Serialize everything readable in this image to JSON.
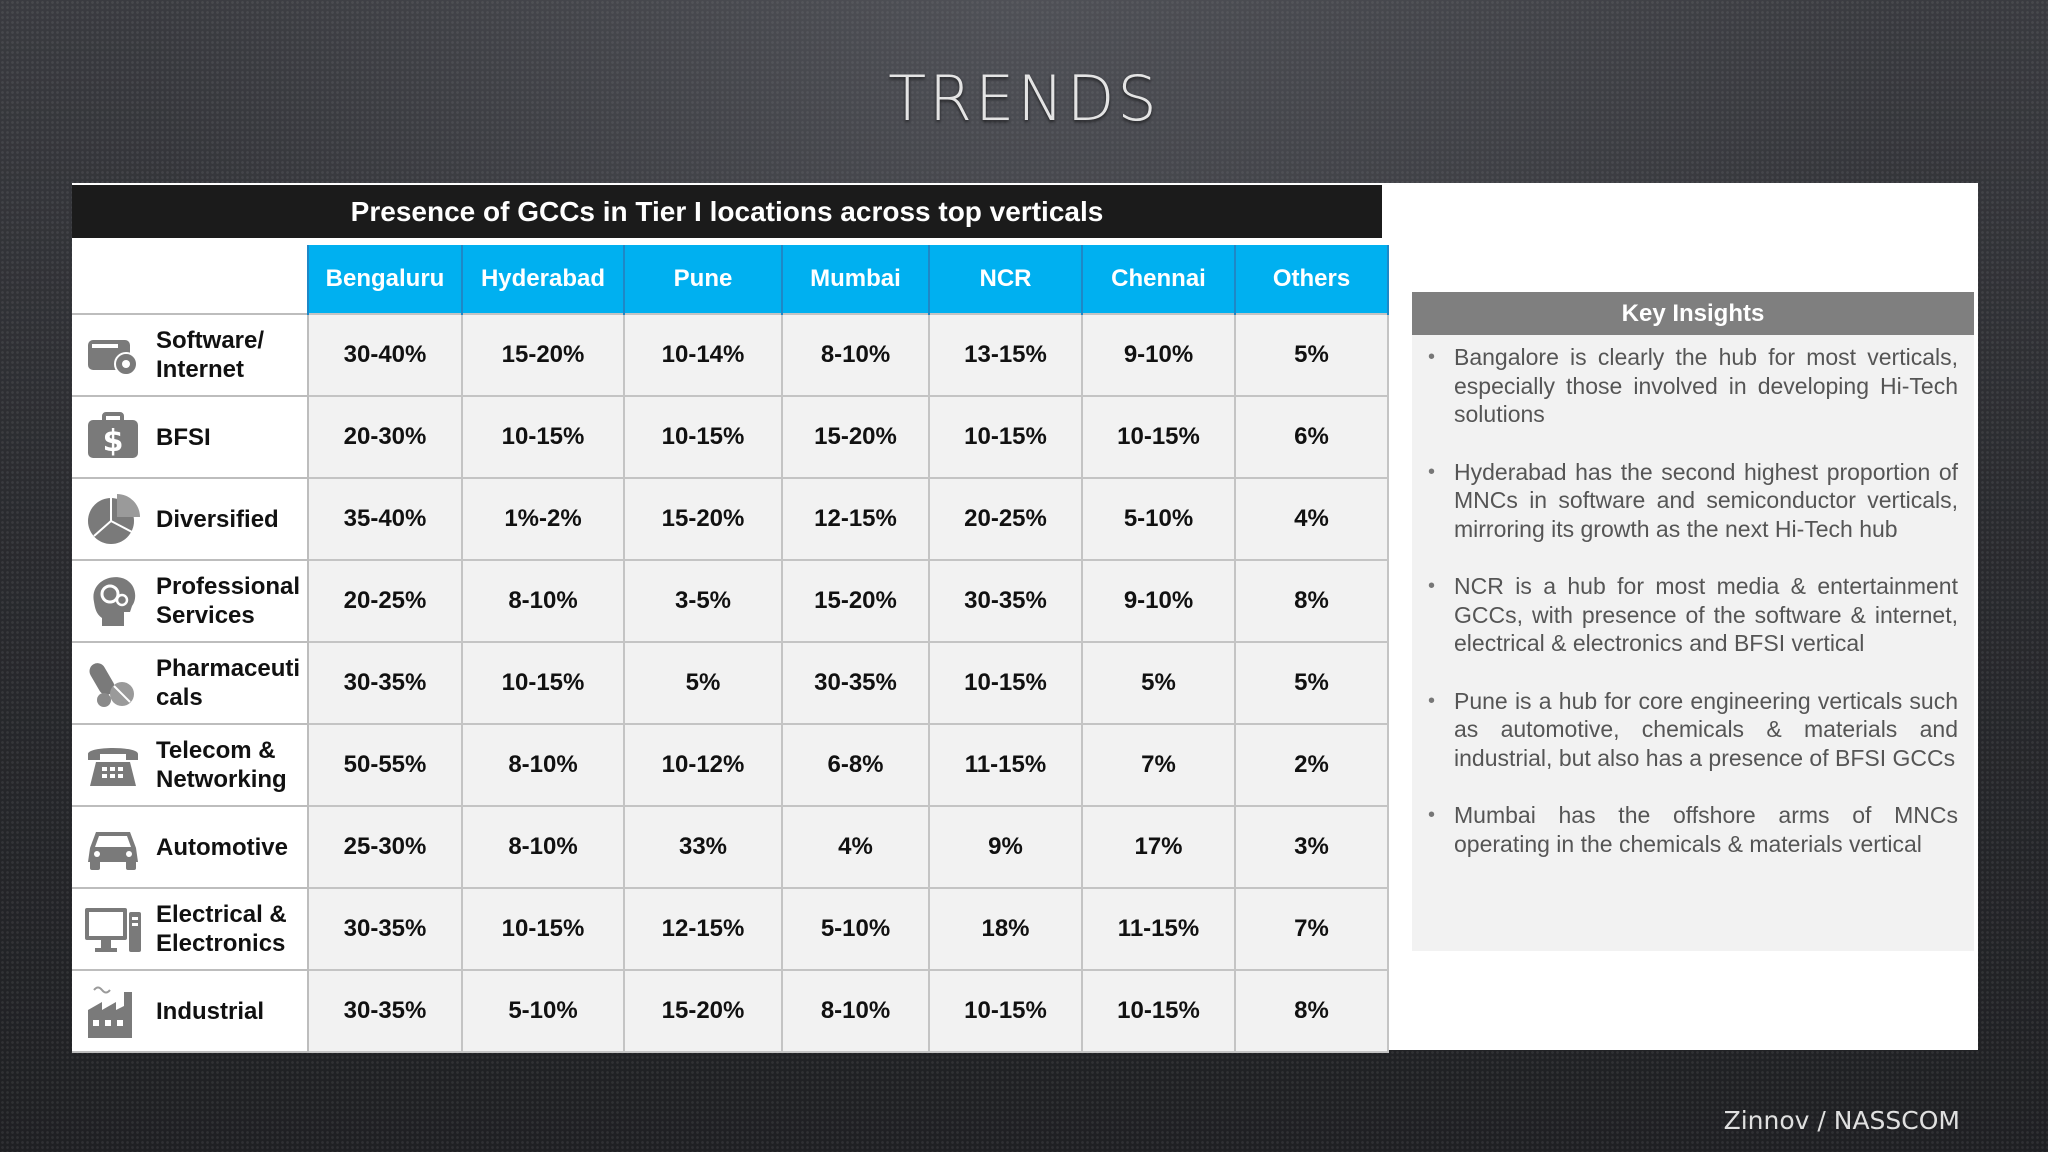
{
  "slide_title": "TRENDS",
  "table_title": "Presence of GCCs in Tier I locations across top verticals",
  "columns": [
    "Bengaluru",
    "Hyderabad",
    "Pune",
    "Mumbai",
    "NCR",
    "Chennai",
    "Others"
  ],
  "rows": [
    {
      "label": "Software/\nInternet",
      "icon": "software-internet-icon",
      "values": [
        "30-40%",
        "15-20%",
        "10-14%",
        "8-10%",
        "13-15%",
        "9-10%",
        "5%"
      ]
    },
    {
      "label": "BFSI",
      "icon": "dollar-briefcase-icon",
      "values": [
        "20-30%",
        "10-15%",
        "10-15%",
        "15-20%",
        "10-15%",
        "10-15%",
        "6%"
      ]
    },
    {
      "label": "Diversified",
      "icon": "pie-chart-icon",
      "values": [
        "35-40%",
        "1%-2%",
        "15-20%",
        "12-15%",
        "20-25%",
        "5-10%",
        "4%"
      ]
    },
    {
      "label": "Professional\nServices",
      "icon": "head-gears-icon",
      "values": [
        "20-25%",
        "8-10%",
        "3-5%",
        "15-20%",
        "30-35%",
        "9-10%",
        "8%"
      ]
    },
    {
      "label": "Pharmaceuti\ncals",
      "icon": "pills-icon",
      "values": [
        "30-35%",
        "10-15%",
        "5%",
        "30-35%",
        "10-15%",
        "5%",
        "5%"
      ]
    },
    {
      "label": "Telecom &\nNetworking",
      "icon": "telephone-icon",
      "values": [
        "50-55%",
        "8-10%",
        "10-12%",
        "6-8%",
        "11-15%",
        "7%",
        "2%"
      ]
    },
    {
      "label": "Automotive",
      "icon": "car-icon",
      "values": [
        "25-30%",
        "8-10%",
        "33%",
        "4%",
        "9%",
        "17%",
        "3%"
      ]
    },
    {
      "label": "Electrical &\nElectronics",
      "icon": "computer-monitor-icon",
      "values": [
        "30-35%",
        "10-15%",
        "12-15%",
        "5-10%",
        "18%",
        "11-15%",
        "7%"
      ]
    },
    {
      "label": "Industrial",
      "icon": "factory-icon",
      "values": [
        "30-35%",
        "5-10%",
        "15-20%",
        "8-10%",
        "10-15%",
        "10-15%",
        "8%"
      ]
    }
  ],
  "insights": {
    "heading": "Key Insights",
    "items": [
      "Bangalore is clearly the hub for most verticals, especially those involved in developing Hi-Tech solutions",
      "Hyderabad has the second highest proportion of MNCs in software and semiconductor verticals, mirroring its growth as the next Hi-Tech hub",
      "NCR is a hub for most media & entertainment GCCs, with presence of the software & internet, electrical & electronics and BFSI vertical",
      "Pune is a hub for core engineering verticals such as automotive, chemicals & materials and industrial, but also has a presence of BFSI GCCs",
      "Mumbai has the offshore arms of MNCs operating in the chemicals & materials vertical"
    ]
  },
  "source": "Zinnov / NASSCOM",
  "colors": {
    "header_blue": "#00b0f0",
    "title_bar": "#1b1b1b",
    "insights_header": "#7f7f7f",
    "cell_bg": "#f2f2f2",
    "icon_gray": "#7a7a7a"
  }
}
